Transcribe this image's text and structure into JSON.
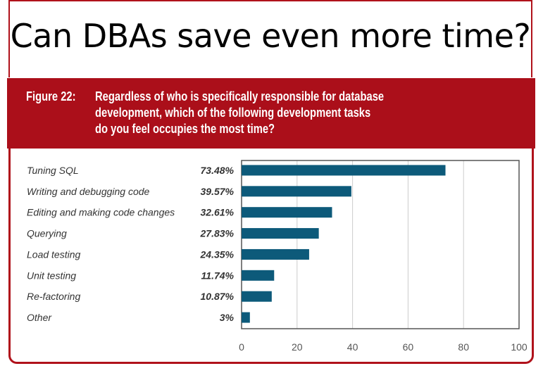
{
  "slide_title": "Can DBAs save even more time?",
  "figure": {
    "label": "Figure 22:",
    "text": "Regardless of who is specifically responsible for database\ndevelopment, which of the following development tasks\ndo you feel occupies the most time?"
  },
  "colors": {
    "banner": "#ab0f1a",
    "bar": "#0d5a7a",
    "border": "#b0121b"
  },
  "chart_data": {
    "type": "bar",
    "orientation": "horizontal",
    "categories": [
      "Tuning SQL",
      "Writing and debugging code",
      "Editing and making code changes",
      "Querying",
      "Load testing",
      "Unit testing",
      "Re-factoring",
      "Other"
    ],
    "values": [
      73.48,
      39.57,
      32.61,
      27.83,
      24.35,
      11.74,
      10.87,
      3
    ],
    "data_labels": [
      "73.48%",
      "39.57%",
      "32.61%",
      "27.83%",
      "24.35%",
      "11.74%",
      "10.87%",
      "3%"
    ],
    "xlim": [
      0,
      100
    ],
    "xticks": [
      "0",
      "20",
      "40",
      "60",
      "80",
      "100"
    ],
    "grid": true
  }
}
